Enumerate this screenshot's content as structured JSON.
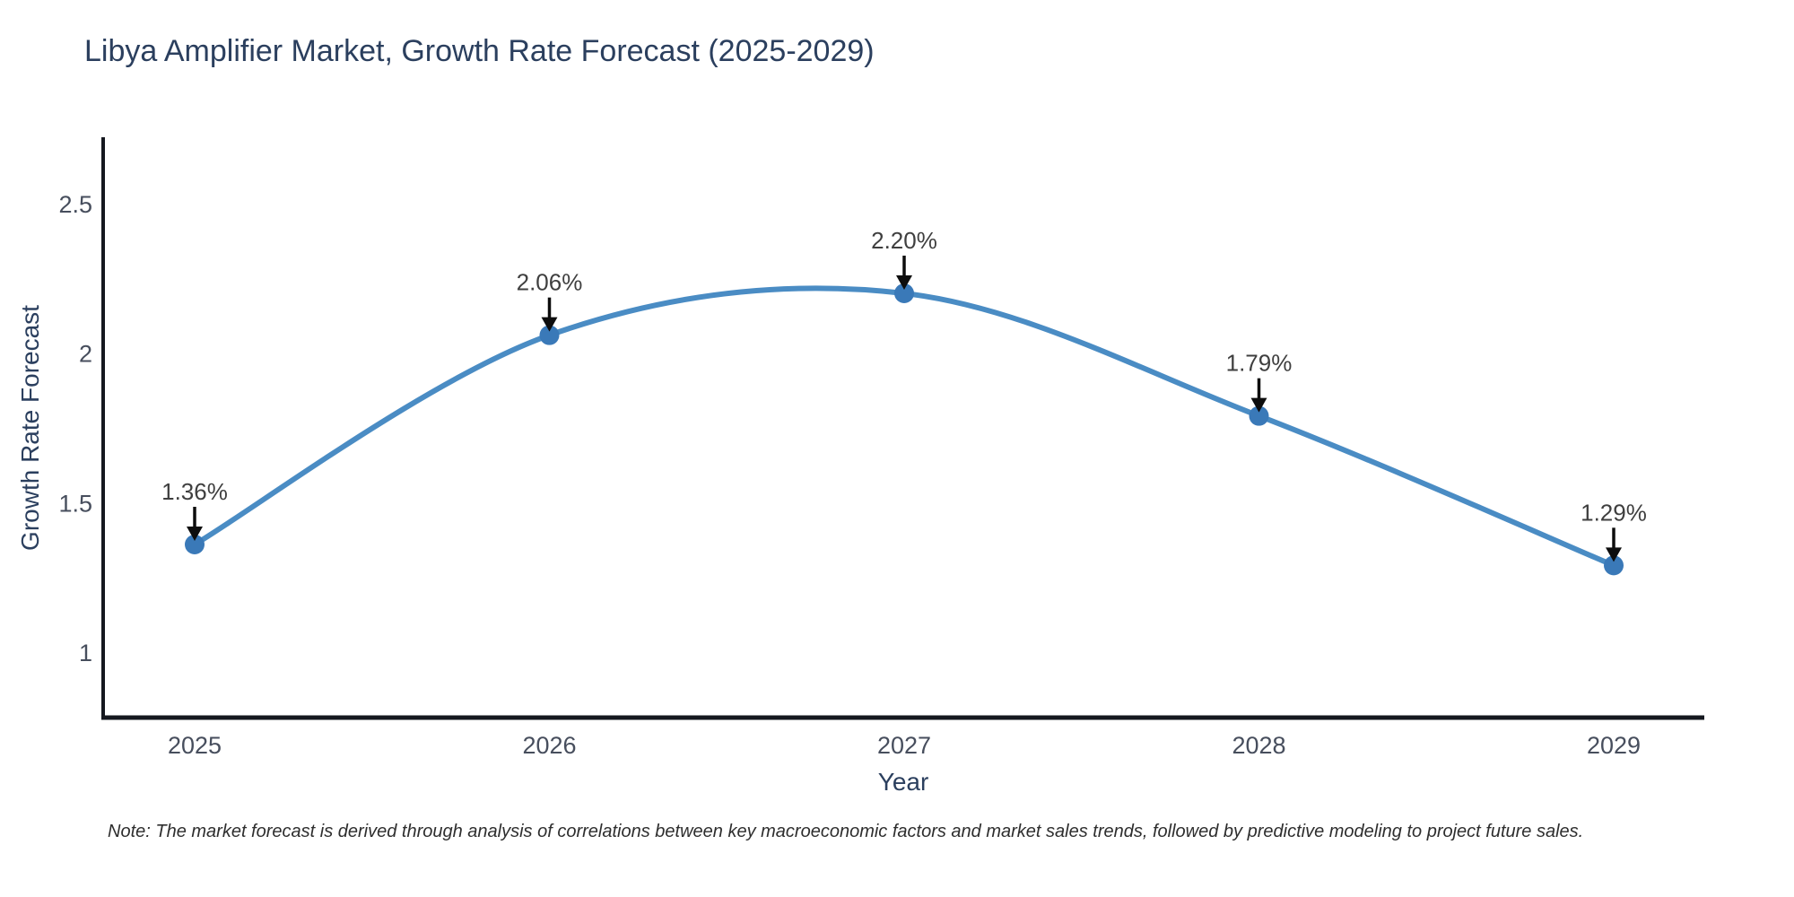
{
  "note": "Note: The market forecast is derived through analysis of correlations between key macroeconomic factors and market sales trends, followed by predictive modeling to project future sales.",
  "chart_data": {
    "type": "line",
    "line_shape": "spline",
    "title": "Libya Amplifier Market, Growth Rate Forecast (2025-2029)",
    "xlabel": "Year",
    "ylabel": "Growth Rate Forecast",
    "x": [
      2025,
      2026,
      2027,
      2028,
      2029
    ],
    "xticklabels": [
      "2025",
      "2026",
      "2027",
      "2028",
      "2029"
    ],
    "values": [
      1.36,
      2.06,
      2.2,
      1.79,
      1.29
    ],
    "point_labels": [
      "1.36%",
      "2.06%",
      "2.20%",
      "1.79%",
      "1.29%"
    ],
    "yticks": [
      1,
      1.5,
      2,
      2.5
    ],
    "yticklabels": [
      "1",
      "1.5",
      "2",
      "2.5"
    ],
    "ylim": [
      0.78,
      2.72
    ],
    "grid": false,
    "legend": "none",
    "markers": true,
    "annotation_arrows": true,
    "colors": {
      "line": "#4a8cc4",
      "marker": "#3a79b8",
      "axis": "#15181f",
      "arrow": "#0d0d0d",
      "tick_text": "#474e5d",
      "annotation_text": "#3f3f3f",
      "title_text": "#2b3f5e",
      "background": "#ffffff"
    }
  }
}
